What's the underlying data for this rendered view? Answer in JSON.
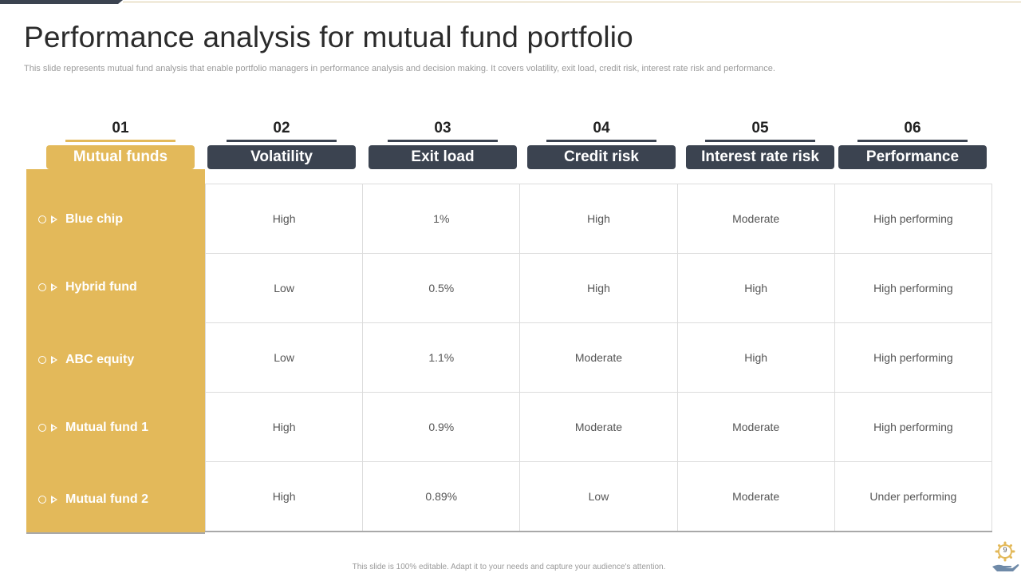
{
  "title": "Performance analysis for mutual fund portfolio",
  "subtitle": "This slide represents mutual fund analysis that enable portfolio managers in performance analysis and decision making. It covers volatility,  exit load, credit risk, interest rate risk and performance.",
  "columns": [
    {
      "number": "01",
      "label": "Mutual funds"
    },
    {
      "number": "02",
      "label": "Volatility"
    },
    {
      "number": "03",
      "label": "Exit load"
    },
    {
      "number": "04",
      "label": "Credit risk"
    },
    {
      "number": "05",
      "label": "Interest rate risk"
    },
    {
      "number": "06",
      "label": "Performance"
    }
  ],
  "rows": [
    {
      "name": "Blue chip",
      "cells": [
        "High",
        "1%",
        "High",
        "Moderate",
        "High performing"
      ]
    },
    {
      "name": "Hybrid fund",
      "cells": [
        "Low",
        "0.5%",
        "High",
        "High",
        "High performing"
      ]
    },
    {
      "name": "ABC equity",
      "cells": [
        "Low",
        "1.1%",
        "Moderate",
        "High",
        "High performing"
      ]
    },
    {
      "name": "Mutual fund 1",
      "cells": [
        "High",
        "0.9%",
        "Moderate",
        "Moderate",
        "High performing"
      ]
    },
    {
      "name": "Mutual fund 2",
      "cells": [
        "High",
        "0.89%",
        "Low",
        "Moderate",
        "Under performing"
      ]
    }
  ],
  "footer": "This slide is 100% editable. Adapt it to your needs and capture your audience's attention.",
  "page_number": "9",
  "colors": {
    "accent": "#e3b95a",
    "dark": "#3b4350"
  }
}
